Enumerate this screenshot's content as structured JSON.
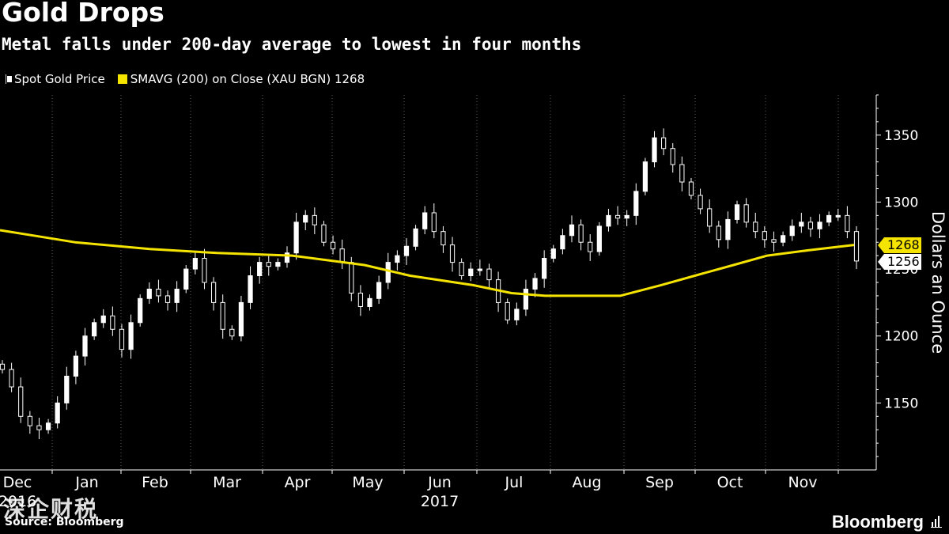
{
  "header": {
    "title": "Gold Drops",
    "subtitle": "Metal falls under 200-day average to lowest in four months"
  },
  "legend": {
    "spot_label": "Spot Gold Price",
    "sma_label": "SMAVG (200) on Close (XAU BGN) 1268"
  },
  "footer": {
    "source": "Source: Bloomberg",
    "brand": "Bloomberg",
    "watermark": "深企财税"
  },
  "colors": {
    "background": "#000000",
    "spot": "#ffffff",
    "sma": "#f5e400",
    "text": "#ffffff"
  },
  "chart_data": {
    "type": "candlestick",
    "ylabel": "Dollars an Ounce",
    "ylim": [
      1100,
      1380
    ],
    "yticks": [
      1150,
      1200,
      1250,
      1300,
      1350
    ],
    "grid": "vertical",
    "legend_position": "top-left",
    "x_month_labels": [
      "Dec",
      "Jan",
      "Feb",
      "Mar",
      "Apr",
      "May",
      "Jun",
      "Jul",
      "Aug",
      "Sep",
      "Oct",
      "Nov"
    ],
    "year_labels": [
      {
        "label": "2016",
        "month": "Dec"
      },
      {
        "label": "2017",
        "month": "Jun"
      }
    ],
    "last_values": {
      "sma": 1268,
      "spot": 1256
    },
    "spot_close_weekly": [
      1175,
      1162,
      1140,
      1133,
      1130,
      1135,
      1150,
      1170,
      1185,
      1200,
      1210,
      1215,
      1205,
      1190,
      1210,
      1228,
      1235,
      1230,
      1225,
      1235,
      1250,
      1258,
      1240,
      1225,
      1205,
      1200,
      1225,
      1245,
      1255,
      1252,
      1255,
      1262,
      1285,
      1290,
      1283,
      1270,
      1265,
      1255,
      1232,
      1222,
      1228,
      1240,
      1255,
      1260,
      1267,
      1280,
      1292,
      1278,
      1268,
      1255,
      1245,
      1250,
      1250,
      1242,
      1225,
      1212,
      1220,
      1235,
      1243,
      1258,
      1265,
      1275,
      1283,
      1270,
      1263,
      1282,
      1290,
      1288,
      1290,
      1308,
      1330,
      1348,
      1340,
      1328,
      1315,
      1305,
      1295,
      1282,
      1272,
      1287,
      1298,
      1285,
      1278,
      1272,
      1270,
      1275,
      1282,
      1285,
      1280,
      1285,
      1290,
      1290,
      1278,
      1256
    ],
    "sma_200": [
      {
        "date": "2016-12-01",
        "value": 1279
      },
      {
        "date": "2016-12-15",
        "value": 1275
      },
      {
        "date": "2017-01-01",
        "value": 1270
      },
      {
        "date": "2017-02-01",
        "value": 1265
      },
      {
        "date": "2017-03-01",
        "value": 1262
      },
      {
        "date": "2017-04-01",
        "value": 1260
      },
      {
        "date": "2017-05-01",
        "value": 1253
      },
      {
        "date": "2017-05-20",
        "value": 1245
      },
      {
        "date": "2017-06-15",
        "value": 1238
      },
      {
        "date": "2017-07-01",
        "value": 1232
      },
      {
        "date": "2017-07-15",
        "value": 1230
      },
      {
        "date": "2017-08-01",
        "value": 1230
      },
      {
        "date": "2017-08-15",
        "value": 1230
      },
      {
        "date": "2017-09-01",
        "value": 1238
      },
      {
        "date": "2017-09-15",
        "value": 1245
      },
      {
        "date": "2017-10-01",
        "value": 1253
      },
      {
        "date": "2017-10-15",
        "value": 1260
      },
      {
        "date": "2017-11-01",
        "value": 1264
      },
      {
        "date": "2017-11-20",
        "value": 1268
      }
    ]
  }
}
